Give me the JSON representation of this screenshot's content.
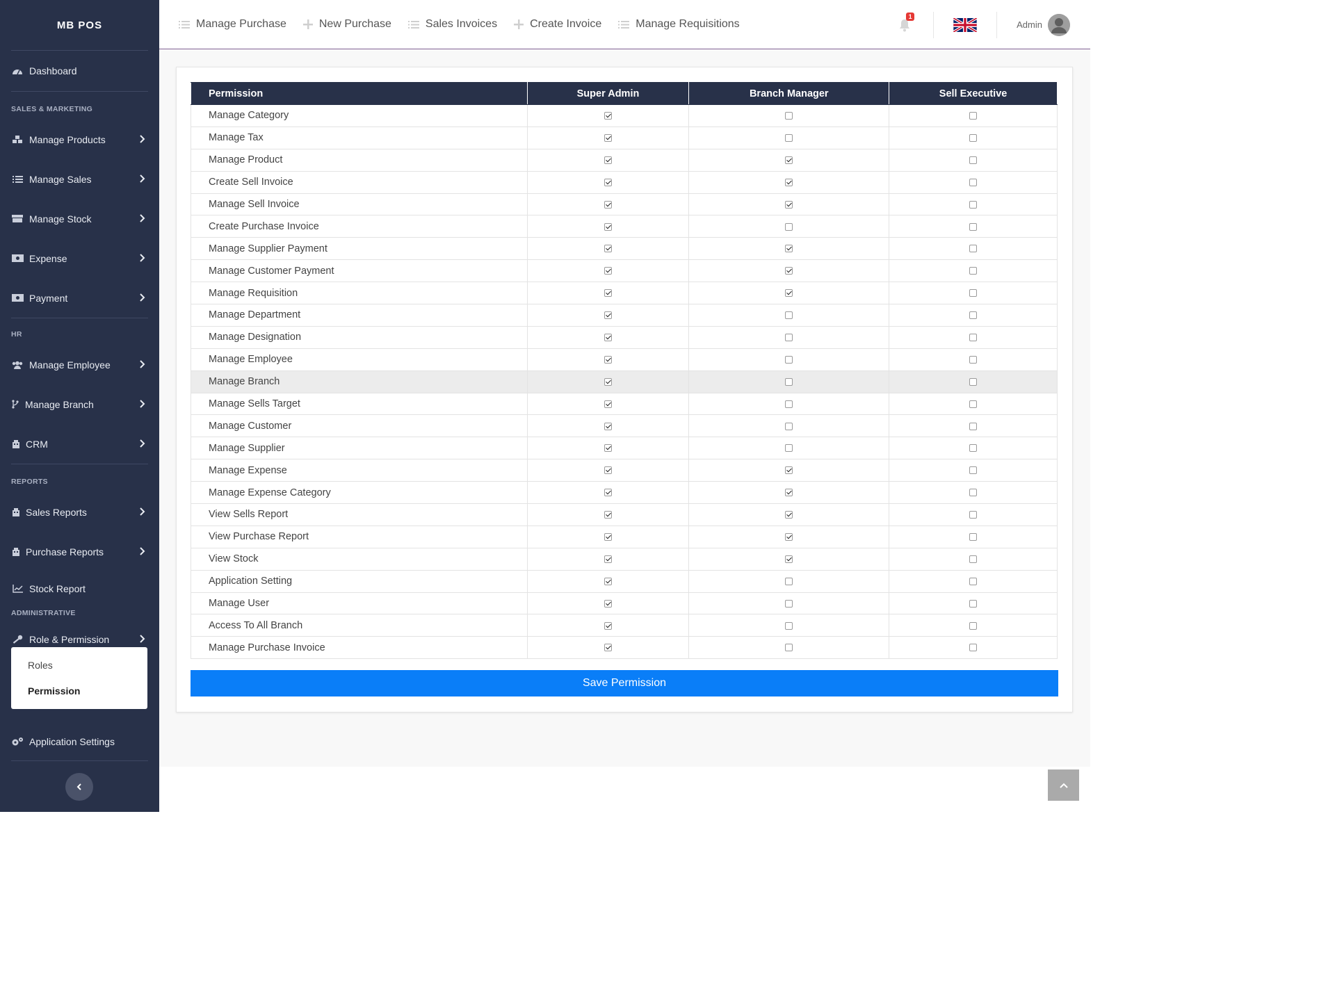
{
  "brand": "MB POS",
  "sidebar": {
    "dashboard": "Dashboard",
    "section_sales": "SALES & MARKETING",
    "manage_products": "Manage Products",
    "manage_sales": "Manage Sales",
    "manage_stock": "Manage Stock",
    "expense": "Expense",
    "payment": "Payment",
    "section_hr": "HR",
    "manage_employee": "Manage Employee",
    "manage_branch": "Manage Branch",
    "crm": "CRM",
    "section_reports": "REPORTS",
    "sales_reports": "Sales Reports",
    "purchase_reports": "Purchase Reports",
    "stock_report": "Stock Report",
    "section_admin": "ADMINISTRATIVE",
    "role_permission": "Role & Permission",
    "sub_roles": "Roles",
    "sub_permission": "Permission",
    "app_settings": "Application Settings"
  },
  "topnav": {
    "manage_purchase": "Manage Purchase",
    "new_purchase": "New Purchase",
    "sales_invoices": "Sales Invoices",
    "create_invoice": "Create Invoice",
    "manage_requisitions": "Manage Requisitions",
    "notification_count": "1",
    "user_label": "Admin"
  },
  "table": {
    "headers": [
      "Permission",
      "Super Admin",
      "Branch Manager",
      "Sell Executive"
    ],
    "rows": [
      {
        "name": "Manage Category",
        "super": true,
        "branch": false,
        "sell": false
      },
      {
        "name": "Manage Tax",
        "super": true,
        "branch": false,
        "sell": false
      },
      {
        "name": "Manage Product",
        "super": true,
        "branch": true,
        "sell": false
      },
      {
        "name": "Create Sell Invoice",
        "super": true,
        "branch": true,
        "sell": false
      },
      {
        "name": "Manage Sell Invoice",
        "super": true,
        "branch": true,
        "sell": false
      },
      {
        "name": "Create Purchase Invoice",
        "super": true,
        "branch": false,
        "sell": false
      },
      {
        "name": "Manage Supplier Payment",
        "super": true,
        "branch": true,
        "sell": false
      },
      {
        "name": "Manage Customer Payment",
        "super": true,
        "branch": true,
        "sell": false
      },
      {
        "name": "Manage Requisition",
        "super": true,
        "branch": true,
        "sell": false
      },
      {
        "name": "Manage Department",
        "super": true,
        "branch": false,
        "sell": false
      },
      {
        "name": "Manage Designation",
        "super": true,
        "branch": false,
        "sell": false
      },
      {
        "name": "Manage Employee",
        "super": true,
        "branch": false,
        "sell": false
      },
      {
        "name": "Manage Branch",
        "super": true,
        "branch": false,
        "sell": false
      },
      {
        "name": "Manage Sells Target",
        "super": true,
        "branch": false,
        "sell": false
      },
      {
        "name": "Manage Customer",
        "super": true,
        "branch": false,
        "sell": false
      },
      {
        "name": "Manage Supplier",
        "super": true,
        "branch": false,
        "sell": false
      },
      {
        "name": "Manage Expense",
        "super": true,
        "branch": true,
        "sell": false
      },
      {
        "name": "Manage Expense Category",
        "super": true,
        "branch": true,
        "sell": false
      },
      {
        "name": "View Sells Report",
        "super": true,
        "branch": true,
        "sell": false
      },
      {
        "name": "View Purchase Report",
        "super": true,
        "branch": true,
        "sell": false
      },
      {
        "name": "View Stock",
        "super": true,
        "branch": true,
        "sell": false
      },
      {
        "name": "Application Setting",
        "super": true,
        "branch": false,
        "sell": false
      },
      {
        "name": "Manage User",
        "super": true,
        "branch": false,
        "sell": false
      },
      {
        "name": "Access To All Branch",
        "super": true,
        "branch": false,
        "sell": false
      },
      {
        "name": "Manage Purchase Invoice",
        "super": true,
        "branch": false,
        "sell": false
      }
    ]
  },
  "save_label": "Save Permission",
  "colors": {
    "sidebar": "#283149",
    "primary": "#0a7ef8",
    "badge": "#e53935"
  }
}
